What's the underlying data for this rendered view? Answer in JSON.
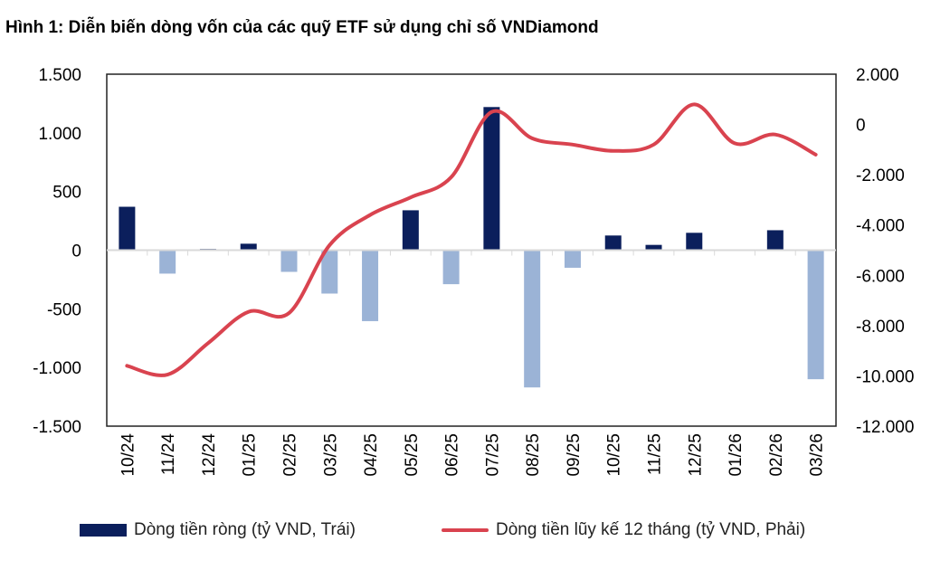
{
  "chart_data": {
    "type": "bar+line",
    "title": "Hình 1: Diễn biến dòng vốn của các quỹ ETF sử dụng chỉ số VNDiamond",
    "categories": [
      "10/24",
      "11/24",
      "12/24",
      "01/25",
      "02/25",
      "03/25",
      "04/25",
      "05/25",
      "06/25",
      "07/25",
      "08/25",
      "09/25",
      "10/25",
      "11/25",
      "12/25",
      "01/26",
      "02/26",
      "03/26"
    ],
    "series": [
      {
        "name": "Dòng tiền ròng (tỷ VND, Trái)",
        "type": "bar",
        "axis": "left",
        "values": [
          370,
          -200,
          10,
          55,
          -185,
          -370,
          -605,
          340,
          -290,
          1220,
          -1170,
          -150,
          125,
          45,
          148,
          0,
          170,
          -1100
        ]
      },
      {
        "name": "Dòng tiền lũy kế 12 tháng (tỷ VND, Phải)",
        "type": "line",
        "axis": "right",
        "values": [
          -9600,
          -9950,
          -8700,
          -7450,
          -7500,
          -4800,
          -3600,
          -2900,
          -2100,
          500,
          -550,
          -800,
          -1050,
          -800,
          800,
          -750,
          -400,
          -1200
        ]
      }
    ],
    "left_axis": {
      "range": [
        -1500,
        1500
      ],
      "ticks": [
        "1.500",
        "1.000",
        "500",
        "0",
        "-500",
        "-1.000",
        "-1.500"
      ],
      "tick_values": [
        1500,
        1000,
        500,
        0,
        -500,
        -1000,
        -1500
      ]
    },
    "right_axis": {
      "range": [
        -12000,
        2000
      ],
      "ticks": [
        "2.000",
        "0",
        "-2.000",
        "-4.000",
        "-6.000",
        "-8.000",
        "-10.000",
        "-12.000"
      ],
      "tick_values": [
        2000,
        0,
        -2000,
        -4000,
        -6000,
        -8000,
        -10000,
        -12000
      ]
    },
    "colors": {
      "positive_bar": "#0b1f5c",
      "negative_bar": "#9bb3d6",
      "line": "#d9434f"
    },
    "grid": false,
    "legend_position": "bottom"
  }
}
